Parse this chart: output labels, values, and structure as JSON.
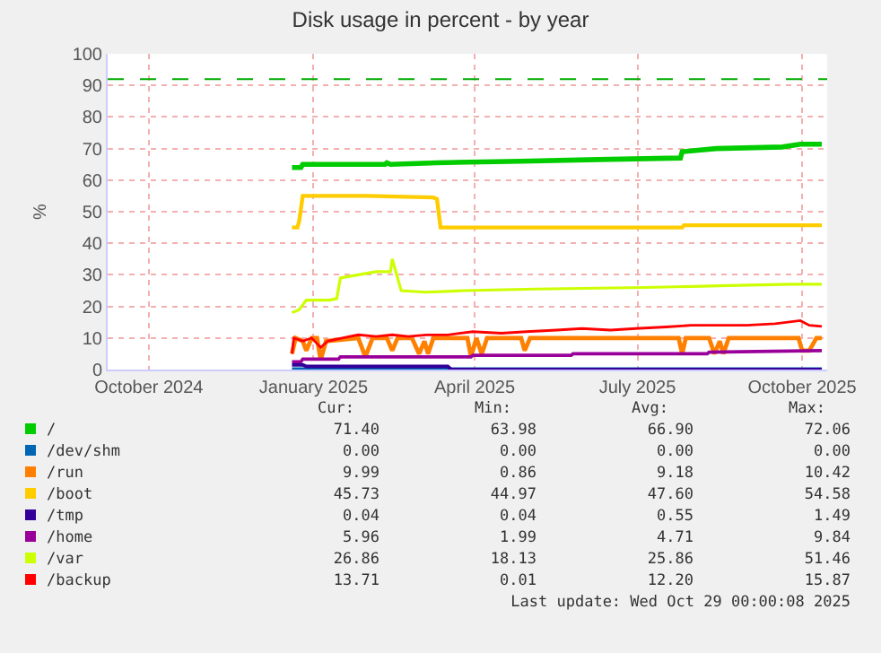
{
  "chart_data": {
    "type": "line",
    "title": "Disk usage in percent - by year",
    "ylabel": "%",
    "xlim": [
      "2024-09-23",
      "2025-10-30"
    ],
    "xticks": [
      {
        "value": "2024-10-16",
        "label": "October 2024"
      },
      {
        "value": "2025-01-16",
        "label": "January 2025"
      },
      {
        "value": "2025-04-16",
        "label": "April 2025"
      },
      {
        "value": "2025-07-16",
        "label": "July 2025"
      },
      {
        "value": "2025-10-16",
        "label": "October 2025"
      }
    ],
    "ylim": [
      0,
      100
    ],
    "yticks": [
      0,
      10,
      20,
      30,
      40,
      50,
      60,
      70,
      80,
      90,
      100
    ],
    "grid": true,
    "legend": "bottom",
    "marker": "none",
    "line_style": "solid",
    "ref_lines": [
      {
        "axis": "y",
        "value": 92,
        "color": "#00aa00",
        "line_style": "dashed"
      }
    ],
    "series": [
      {
        "name": "/",
        "color": "#00cc00",
        "x": [
          "2025-01-04",
          "2025-01-09",
          "2025-01-10",
          "2025-02-25",
          "2025-02-26",
          "2025-02-28",
          "2025-03-26",
          "2025-05-12",
          "2025-06-24",
          "2025-08-09",
          "2025-08-10",
          "2025-08-29",
          "2025-10-05",
          "2025-10-15",
          "2025-10-27"
        ],
        "values": [
          64,
          64,
          65,
          65,
          65.5,
          65,
          65.5,
          66,
          66.5,
          67,
          69,
          70,
          70.5,
          71.4,
          71.4
        ]
      },
      {
        "name": "/dev/shm",
        "color": "#0066b3",
        "x": [
          "2025-01-04",
          "2025-10-27"
        ],
        "values": [
          0,
          0
        ]
      },
      {
        "name": "/run",
        "color": "#ff8000",
        "x": [
          "2025-01-04",
          "2025-01-06",
          "2025-01-10",
          "2025-01-12",
          "2025-01-15",
          "2025-01-18",
          "2025-01-20",
          "2025-01-23",
          "2025-02-10",
          "2025-02-14",
          "2025-02-18",
          "2025-02-26",
          "2025-03-01",
          "2025-03-04",
          "2025-03-12",
          "2025-03-16",
          "2025-03-19",
          "2025-03-21",
          "2025-03-24",
          "2025-04-12",
          "2025-04-14",
          "2025-04-17",
          "2025-04-20",
          "2025-04-23",
          "2025-05-12",
          "2025-05-14",
          "2025-05-17",
          "2025-08-08",
          "2025-08-10",
          "2025-08-12",
          "2025-08-25",
          "2025-08-28",
          "2025-08-31",
          "2025-09-02",
          "2025-09-05",
          "2025-10-14",
          "2025-10-16",
          "2025-10-20",
          "2025-10-24",
          "2025-10-27"
        ],
        "values": [
          5,
          10,
          9,
          6,
          10,
          10,
          3,
          9,
          10,
          4,
          10,
          10,
          6,
          10,
          10,
          5,
          9,
          5,
          10,
          10,
          4,
          10,
          5,
          10,
          10,
          6,
          10,
          10,
          5,
          10,
          10,
          5,
          9,
          5,
          10,
          10,
          6,
          6,
          10,
          10
        ]
      },
      {
        "name": "/boot",
        "color": "#ffcc00",
        "x": [
          "2025-01-04",
          "2025-01-07",
          "2025-01-08",
          "2025-01-10",
          "2025-02-15",
          "2025-03-24",
          "2025-03-26",
          "2025-03-28",
          "2025-08-10",
          "2025-08-11",
          "2025-10-27"
        ],
        "values": [
          45,
          45,
          47,
          55,
          55,
          54.5,
          54,
          45,
          45,
          45.7,
          45.7
        ]
      },
      {
        "name": "/tmp",
        "color": "#330099",
        "x": [
          "2025-01-04",
          "2025-01-10",
          "2025-01-12",
          "2025-04-01",
          "2025-04-03",
          "2025-10-27"
        ],
        "values": [
          1.5,
          1.5,
          1,
          1,
          0,
          0
        ]
      },
      {
        "name": "/home",
        "color": "#990099",
        "x": [
          "2025-01-04",
          "2025-01-09",
          "2025-01-10",
          "2025-01-30",
          "2025-01-31",
          "2025-04-14",
          "2025-04-15",
          "2025-06-09",
          "2025-06-10",
          "2025-08-24",
          "2025-08-25",
          "2025-10-27"
        ],
        "values": [
          2.5,
          2.5,
          3.3,
          3.3,
          4,
          4,
          4.5,
          4.5,
          5,
          5,
          5.5,
          6
        ]
      },
      {
        "name": "/var",
        "color": "#ccff00",
        "x": [
          "2025-01-04",
          "2025-01-08",
          "2025-01-12",
          "2025-01-25",
          "2025-01-29",
          "2025-01-31",
          "2025-02-10",
          "2025-02-20",
          "2025-02-28",
          "2025-03-01",
          "2025-03-06",
          "2025-03-20",
          "2025-04-10",
          "2025-05-20",
          "2025-07-20",
          "2025-08-30",
          "2025-10-10",
          "2025-10-27"
        ],
        "values": [
          18,
          19,
          22,
          22,
          22.5,
          29,
          30,
          31,
          31,
          35,
          25,
          24.5,
          25,
          25.5,
          26,
          26.5,
          27,
          27
        ]
      },
      {
        "name": "/backup",
        "color": "#ff0000",
        "x": [
          "2025-01-04",
          "2025-01-05",
          "2025-01-10",
          "2025-01-15",
          "2025-01-20",
          "2025-01-24",
          "2025-02-01",
          "2025-02-10",
          "2025-02-20",
          "2025-03-01",
          "2025-03-10",
          "2025-03-20",
          "2025-04-01",
          "2025-04-15",
          "2025-05-01",
          "2025-05-15",
          "2025-06-01",
          "2025-06-15",
          "2025-07-01",
          "2025-07-15",
          "2025-08-01",
          "2025-08-15",
          "2025-09-01",
          "2025-09-15",
          "2025-10-01",
          "2025-10-15",
          "2025-10-20",
          "2025-10-27"
        ],
        "values": [
          5,
          10,
          9,
          10,
          7,
          9,
          10,
          11,
          10.5,
          11,
          10.5,
          11,
          11,
          12,
          11.5,
          12,
          12.5,
          13,
          12.5,
          13,
          13.5,
          14,
          14,
          14,
          14.5,
          15.5,
          14,
          13.7
        ]
      }
    ],
    "annotations": [
      "Cur:",
      "Min:",
      "Avg:",
      "Max:",
      "71.40",
      "63.98",
      "66.90",
      "72.06",
      "0.00",
      "0.00",
      "0.00",
      "0.00",
      "9.99",
      "0.86",
      "9.18",
      "10.42",
      "45.73",
      "44.97",
      "47.60",
      "54.58",
      "0.04",
      "0.04",
      "0.55",
      "1.49",
      "5.96",
      "1.99",
      "4.71",
      "9.84",
      "26.86",
      "18.13",
      "25.86",
      "51.46",
      "13.71",
      "0.01",
      "12.20",
      "15.87",
      "Last update: Wed Oct 29 00:00:08 2025"
    ]
  }
}
